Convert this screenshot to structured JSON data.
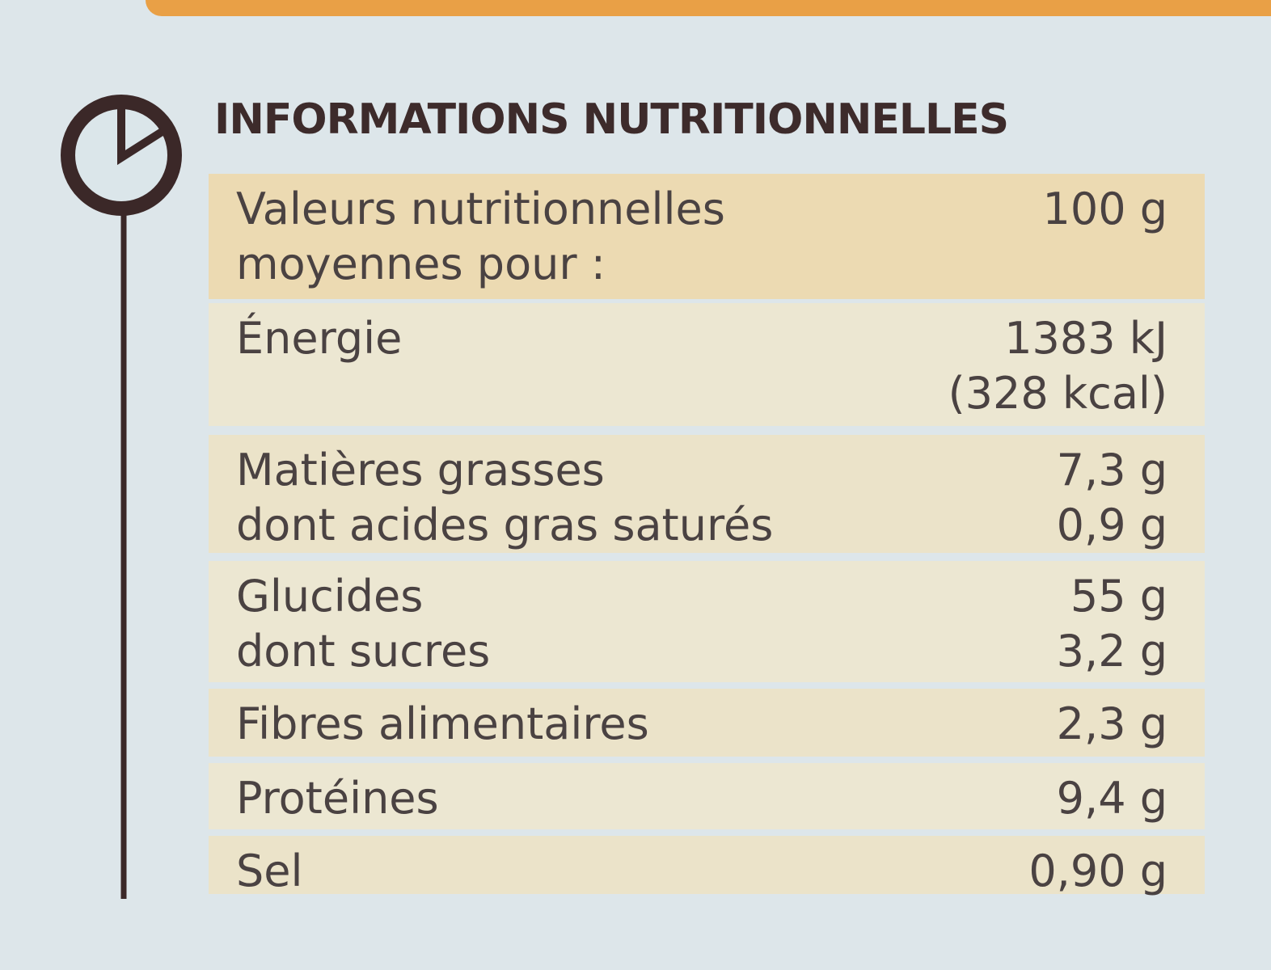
{
  "header": {
    "title": "INFORMATIONS NUTRITIONNELLES"
  },
  "table": {
    "head": {
      "label": [
        "Valeurs nutritionnelles",
        "moyennes pour :"
      ],
      "value": [
        "100 g"
      ]
    },
    "rows": [
      {
        "label": [
          "Énergie"
        ],
        "value": [
          "1383 kJ",
          "(328 kcal)"
        ]
      },
      {
        "label": [
          "Matières grasses",
          "dont acides gras saturés"
        ],
        "value": [
          "7,3 g",
          "0,9 g"
        ]
      },
      {
        "label": [
          "Glucides",
          "dont sucres"
        ],
        "value": [
          "55 g",
          "3,2 g"
        ]
      },
      {
        "label": [
          "Fibres alimentaires"
        ],
        "value": [
          "2,3 g"
        ]
      },
      {
        "label": [
          "Protéines"
        ],
        "value": [
          "9,4 g"
        ]
      },
      {
        "label": [
          "Sel"
        ],
        "value": [
          "0,90 g"
        ]
      }
    ]
  }
}
